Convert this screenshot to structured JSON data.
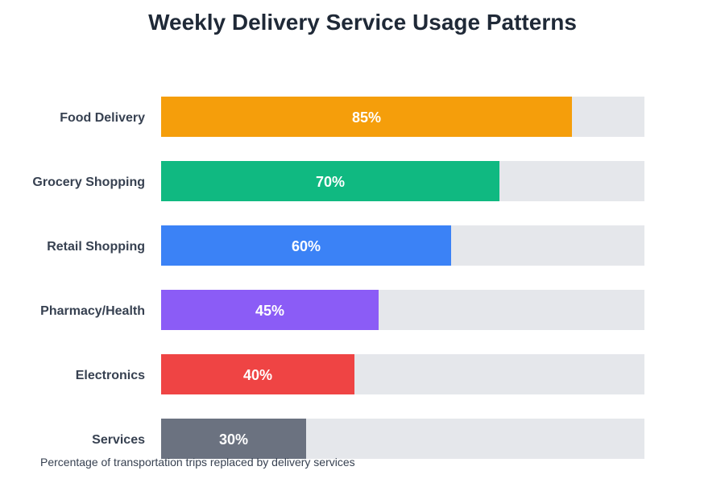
{
  "chart_data": {
    "type": "bar",
    "orientation": "horizontal",
    "title": "Weekly Delivery Service Usage Patterns",
    "caption": "Percentage of transportation trips replaced by delivery services",
    "categories": [
      "Food Delivery",
      "Grocery Shopping",
      "Retail Shopping",
      "Pharmacy/Health",
      "Electronics",
      "Services"
    ],
    "values": [
      85,
      70,
      60,
      45,
      40,
      30
    ],
    "value_suffix": "%",
    "xlim": [
      0,
      100
    ],
    "colors": [
      "#f59e0b",
      "#10b981",
      "#3b82f6",
      "#8b5cf6",
      "#ef4444",
      "#6b7280"
    ],
    "track_color": "#e5e7eb",
    "grid": false
  }
}
